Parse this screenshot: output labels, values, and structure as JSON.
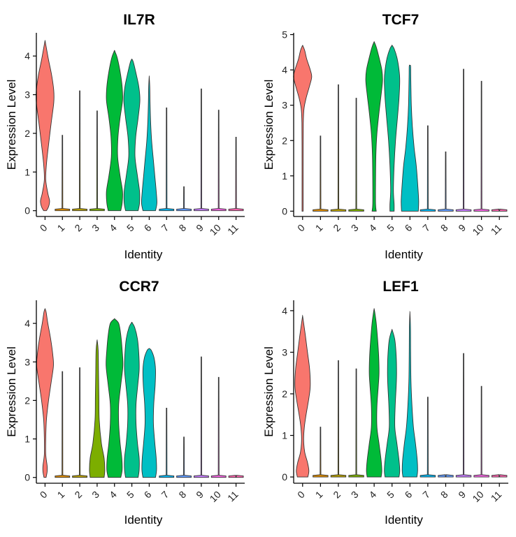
{
  "chart_data": [
    {
      "type": "violin",
      "title": "IL7R",
      "xlabel": "Identity",
      "ylabel": "Expression Level",
      "categories": [
        "0",
        "1",
        "2",
        "3",
        "4",
        "5",
        "6",
        "7",
        "8",
        "9",
        "10",
        "11"
      ],
      "yticks": [
        0,
        1,
        2,
        3,
        4
      ],
      "ylim": [
        -0.15,
        4.6
      ],
      "max_values": [
        4.4,
        1.95,
        3.1,
        2.58,
        4.15,
        3.92,
        3.48,
        2.66,
        0.62,
        3.15,
        2.6,
        1.9
      ],
      "series": [
        {
          "category": "0",
          "value_range": [
            0,
            4.4
          ],
          "density_peaks": [
            0.2,
            3.0
          ]
        },
        {
          "category": "4",
          "value_range": [
            0,
            4.15
          ],
          "density_peaks": [
            0.2,
            2.9
          ]
        },
        {
          "category": "5",
          "value_range": [
            0,
            3.92
          ],
          "density_peaks": [
            0.2,
            2.9
          ]
        },
        {
          "category": "6",
          "value_range": [
            0,
            3.48
          ],
          "density_peaks": [
            0.2,
            1.3
          ]
        }
      ]
    },
    {
      "type": "violin",
      "title": "TCF7",
      "xlabel": "Identity",
      "ylabel": "Expression Level",
      "categories": [
        "0",
        "1",
        "2",
        "3",
        "4",
        "5",
        "6",
        "7",
        "8",
        "9",
        "10",
        "11"
      ],
      "yticks": [
        0,
        1,
        2,
        3,
        4,
        5
      ],
      "ylim": [
        -0.15,
        5.05
      ],
      "max_values": [
        4.7,
        2.13,
        3.58,
        3.2,
        4.8,
        4.7,
        4.13,
        2.42,
        1.68,
        4.02,
        3.68,
        0.0
      ],
      "series": [
        {
          "category": "0",
          "value_range": [
            0,
            4.7
          ],
          "density_peaks": [
            3.8
          ]
        },
        {
          "category": "4",
          "value_range": [
            0,
            4.8
          ],
          "density_peaks": [
            0.1,
            3.7
          ]
        },
        {
          "category": "5",
          "value_range": [
            0,
            4.7
          ],
          "density_peaks": [
            0.1,
            3.8
          ]
        },
        {
          "category": "6",
          "value_range": [
            0,
            4.13
          ],
          "density_peaks": [
            0.2,
            1.5
          ]
        }
      ]
    },
    {
      "type": "violin",
      "title": "CCR7",
      "xlabel": "Identity",
      "ylabel": "Expression Level",
      "categories": [
        "0",
        "1",
        "2",
        "3",
        "4",
        "5",
        "6",
        "7",
        "8",
        "9",
        "10",
        "11"
      ],
      "yticks": [
        0,
        1,
        2,
        3,
        4
      ],
      "ylim": [
        -0.15,
        4.6
      ],
      "max_values": [
        4.38,
        2.75,
        2.85,
        3.57,
        4.12,
        4.03,
        3.35,
        1.8,
        1.05,
        3.13,
        2.6,
        0.0
      ],
      "series": [
        {
          "category": "0",
          "value_range": [
            0,
            4.38
          ],
          "density_peaks": [
            0.1,
            3.0
          ]
        },
        {
          "category": "3",
          "value_range": [
            0,
            3.57
          ],
          "density_peaks": [
            0.2,
            2.1
          ]
        },
        {
          "category": "4",
          "value_range": [
            0,
            4.12
          ],
          "density_peaks": [
            0.2,
            2.9
          ]
        },
        {
          "category": "5",
          "value_range": [
            0,
            4.03
          ],
          "density_peaks": [
            0.2,
            2.8
          ]
        },
        {
          "category": "6",
          "value_range": [
            0,
            3.35
          ],
          "density_peaks": [
            0.2,
            2.6
          ]
        }
      ]
    },
    {
      "type": "violin",
      "title": "LEF1",
      "xlabel": "Identity",
      "ylabel": "Expression Level",
      "categories": [
        "0",
        "1",
        "2",
        "3",
        "4",
        "5",
        "6",
        "7",
        "8",
        "9",
        "10",
        "11"
      ],
      "yticks": [
        0,
        1,
        2,
        3,
        4
      ],
      "ylim": [
        -0.15,
        4.25
      ],
      "max_values": [
        3.88,
        1.2,
        2.8,
        2.6,
        4.05,
        3.55,
        3.97,
        1.92,
        0.0,
        2.97,
        2.18,
        0.0
      ],
      "series": [
        {
          "category": "0",
          "value_range": [
            0,
            3.88
          ],
          "density_peaks": [
            0.2,
            2.2
          ]
        },
        {
          "category": "4",
          "value_range": [
            0,
            4.05
          ],
          "density_peaks": [
            0.1,
            2.5
          ]
        },
        {
          "category": "5",
          "value_range": [
            0,
            3.55
          ],
          "density_peaks": [
            0.1,
            2.4
          ]
        },
        {
          "category": "6",
          "value_range": [
            0,
            3.97
          ],
          "density_peaks": [
            0.1,
            1.0
          ]
        }
      ]
    }
  ],
  "colors": [
    "#F8766D",
    "#DE8C00",
    "#B79F00",
    "#7CAE00",
    "#00BA38",
    "#00C08B",
    "#00BFC4",
    "#00B4F0",
    "#619CFF",
    "#C77CFF",
    "#F564E3",
    "#FF64B0"
  ]
}
